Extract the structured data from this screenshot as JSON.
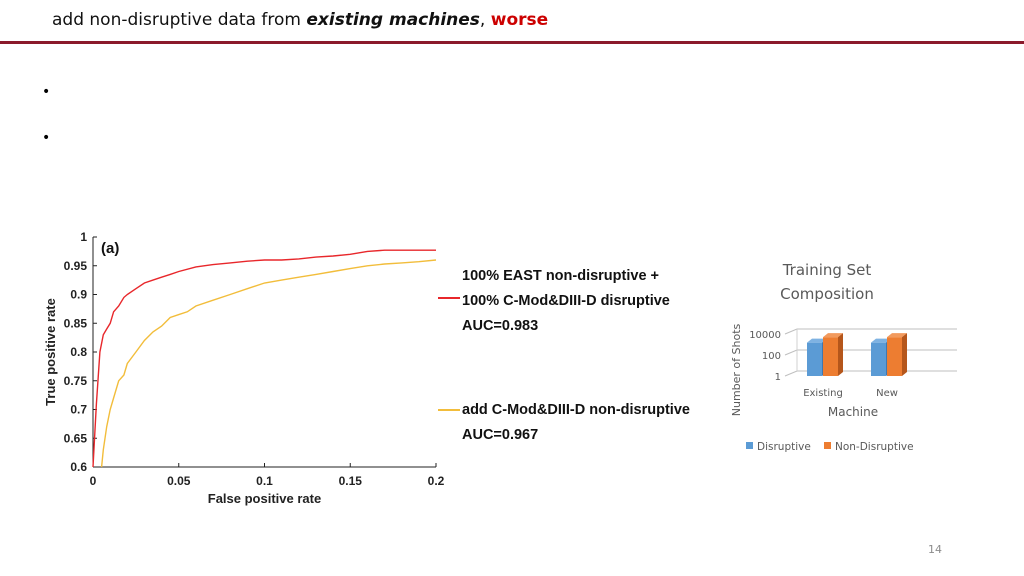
{
  "title": {
    "part1": "add non-disruptive data from ",
    "emphasis": "existing machines",
    "comma": ",",
    "highlight": "worse",
    "highlight_color": "#cc0000"
  },
  "bullets": [
    "•",
    "•"
  ],
  "page_number": "14",
  "chart_data": [
    {
      "type": "line",
      "panel_label": "(a)",
      "xlabel": "False positive rate",
      "ylabel": "True positive rate",
      "xlim": [
        0,
        0.2
      ],
      "ylim": [
        0.6,
        1
      ],
      "xticks": [
        "0",
        "0.05",
        "0.1",
        "0.15",
        "0.2"
      ],
      "yticks": [
        "0.6",
        "0.65",
        "0.7",
        "0.75",
        "0.8",
        "0.85",
        "0.9",
        "0.95",
        "1"
      ],
      "series": [
        {
          "name_lines": [
            "100% EAST non-disruptive +",
            "100% C-Mod&DIII-D disruptive",
            "AUC=0.983"
          ],
          "color": "#e8272b",
          "x": [
            0,
            0.002,
            0.004,
            0.006,
            0.008,
            0.01,
            0.012,
            0.015,
            0.018,
            0.02,
            0.025,
            0.03,
            0.035,
            0.04,
            0.045,
            0.05,
            0.06,
            0.07,
            0.08,
            0.09,
            0.1,
            0.11,
            0.12,
            0.13,
            0.14,
            0.15,
            0.16,
            0.17,
            0.18,
            0.19,
            0.2
          ],
          "y": [
            0.6,
            0.71,
            0.8,
            0.83,
            0.84,
            0.85,
            0.87,
            0.88,
            0.895,
            0.9,
            0.91,
            0.92,
            0.925,
            0.93,
            0.935,
            0.94,
            0.948,
            0.952,
            0.955,
            0.958,
            0.96,
            0.96,
            0.962,
            0.965,
            0.967,
            0.97,
            0.975,
            0.977,
            0.977,
            0.977,
            0.977
          ]
        },
        {
          "name_lines": [
            "add C-Mod&DIII-D non-disruptive",
            "AUC=0.967"
          ],
          "color": "#f2bd3b",
          "x": [
            0.005,
            0.006,
            0.008,
            0.01,
            0.012,
            0.015,
            0.018,
            0.02,
            0.025,
            0.03,
            0.035,
            0.04,
            0.045,
            0.05,
            0.055,
            0.06,
            0.07,
            0.08,
            0.09,
            0.1,
            0.11,
            0.12,
            0.13,
            0.14,
            0.15,
            0.16,
            0.17,
            0.18,
            0.19,
            0.2
          ],
          "y": [
            0.6,
            0.63,
            0.67,
            0.7,
            0.72,
            0.75,
            0.76,
            0.78,
            0.8,
            0.82,
            0.835,
            0.845,
            0.86,
            0.865,
            0.87,
            0.88,
            0.89,
            0.9,
            0.91,
            0.92,
            0.925,
            0.93,
            0.935,
            0.94,
            0.945,
            0.95,
            0.953,
            0.955,
            0.957,
            0.96
          ]
        }
      ]
    },
    {
      "type": "bar",
      "title_lines": [
        "Training Set",
        "Composition"
      ],
      "xlabel": "Machine",
      "ylabel": "Number of Shots",
      "scale": "log",
      "yticks": [
        "10000",
        "100",
        "1"
      ],
      "categories": [
        "Existing",
        "New"
      ],
      "series": [
        {
          "name": "Disruptive",
          "color": "#5b9bd5",
          "values": [
            1500,
            1500
          ]
        },
        {
          "name": "Non-Disruptive",
          "color": "#ed7d31",
          "values": [
            5000,
            5000
          ]
        }
      ]
    }
  ]
}
